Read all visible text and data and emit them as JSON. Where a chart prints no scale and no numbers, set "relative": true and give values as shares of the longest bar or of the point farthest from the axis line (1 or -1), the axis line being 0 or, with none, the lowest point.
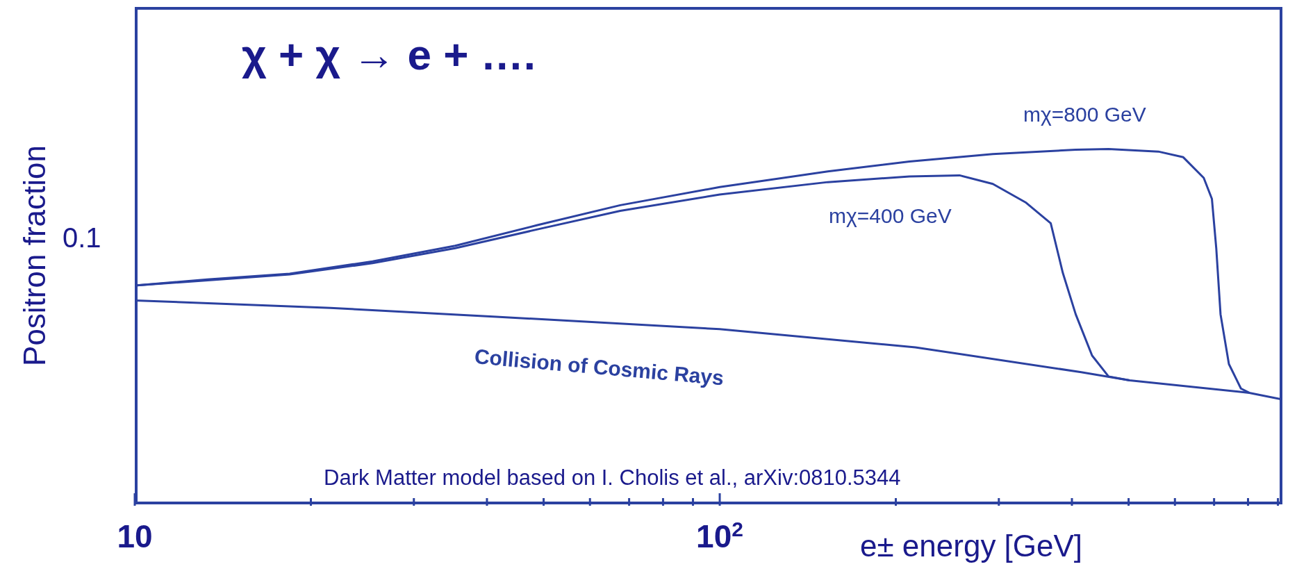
{
  "chart_data": {
    "type": "line",
    "relative": true,
    "xlabel": "e± energy [GeV]",
    "ylabel": "Positron fraction",
    "log": "x",
    "xlim": [
      10,
      916
    ],
    "xticks": [
      {
        "value": 10,
        "label": "10"
      },
      {
        "value": 20,
        "label": null
      },
      {
        "value": 30,
        "label": null
      },
      {
        "value": 40,
        "label": null
      },
      {
        "value": 50,
        "label": null
      },
      {
        "value": 60,
        "label": null
      },
      {
        "value": 70,
        "label": null
      },
      {
        "value": 80,
        "label": null
      },
      {
        "value": 90,
        "label": null
      },
      {
        "value": 100,
        "label": "10$^{2}$"
      },
      {
        "value": 200,
        "label": null
      },
      {
        "value": 300,
        "label": null
      },
      {
        "value": 400,
        "label": null
      },
      {
        "value": 500,
        "label": null
      },
      {
        "value": 600,
        "label": null
      },
      {
        "value": 700,
        "label": null
      },
      {
        "value": 800,
        "label": null
      },
      {
        "value": 900,
        "label": null
      }
    ],
    "series": [
      {
        "name": "mχ=800 GeV",
        "color": "#2b41a0",
        "x": [
          10,
          13.3,
          18.4,
          25.5,
          35.3,
          48.8,
          67.6,
          100,
          153,
          211,
          293,
          406,
          462,
          562,
          620,
          672,
          694,
          706,
          718,
          742,
          778,
          804
        ],
        "values": [
          0.616,
          0.633,
          0.649,
          0.684,
          0.728,
          0.786,
          0.842,
          0.893,
          0.937,
          0.965,
          0.986,
          0.998,
          1.0,
          0.993,
          0.977,
          0.919,
          0.86,
          0.721,
          0.535,
          0.395,
          0.326,
          0.314
        ]
      },
      {
        "name": "mχ=400 GeV",
        "color": "#2b41a0",
        "x": [
          10,
          18.4,
          25.5,
          35.3,
          48.8,
          67.6,
          100,
          153,
          211,
          257,
          293,
          334,
          368,
          386,
          406,
          433,
          462,
          502
        ],
        "values": [
          0.616,
          0.647,
          0.679,
          0.721,
          0.774,
          0.826,
          0.872,
          0.907,
          0.923,
          0.926,
          0.902,
          0.849,
          0.791,
          0.651,
          0.535,
          0.419,
          0.36,
          0.349
        ]
      },
      {
        "name": "Collision of Cosmic Rays",
        "color": "#2b41a0",
        "x": [
          10,
          21.6,
          41.5,
          100,
          216,
          415,
          502,
          804,
          916
        ],
        "values": [
          0.574,
          0.553,
          0.528,
          0.493,
          0.442,
          0.372,
          0.349,
          0.314,
          0.295
        ]
      }
    ],
    "annotations": [
      "0.1",
      "χ + χ → e + ….",
      "Dark Matter model based on I. Cholis et al., arXiv:0810.5344"
    ]
  }
}
